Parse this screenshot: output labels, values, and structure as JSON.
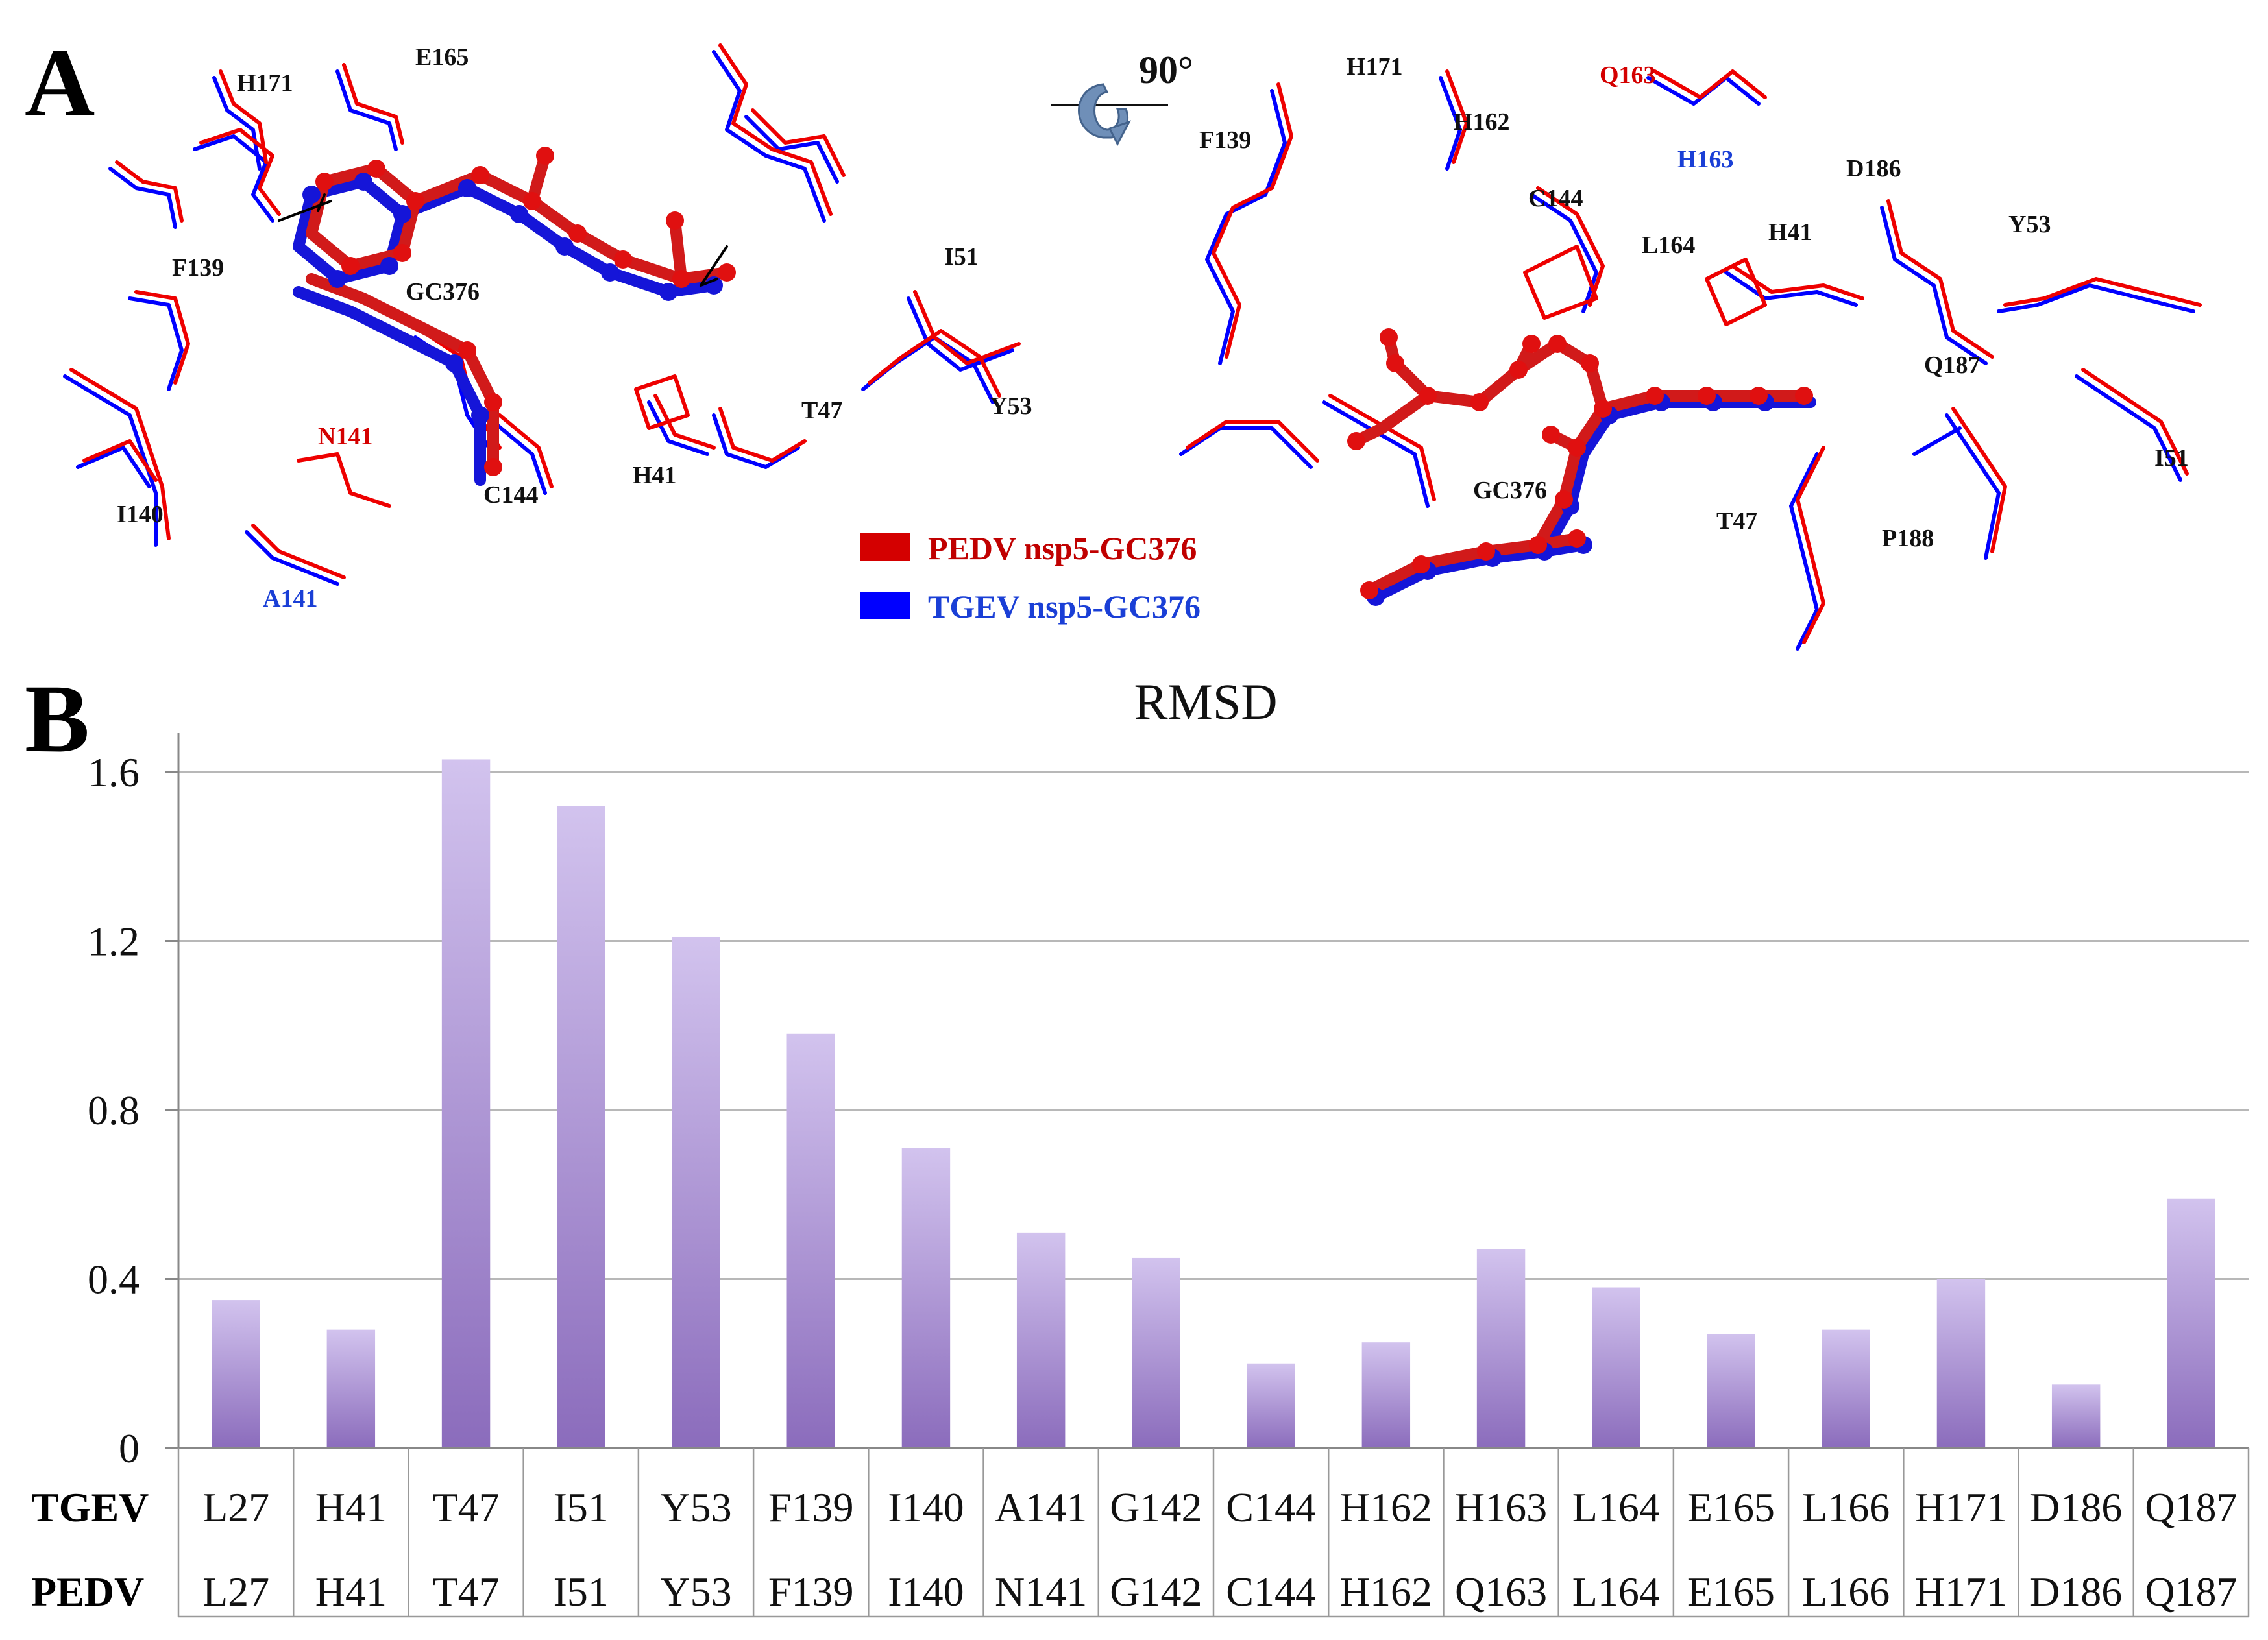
{
  "panel_a": {
    "label": "A",
    "rotation_label": "90°",
    "legend": [
      {
        "text": "PEDV nsp5-GC376",
        "color": "#d40000"
      },
      {
        "text": "TGEV nsp5-GC376",
        "color": "#0000ff"
      }
    ],
    "left_view_labels": [
      {
        "text": "H171",
        "color": "#111111"
      },
      {
        "text": "E165",
        "color": "#111111"
      },
      {
        "text": "F139",
        "color": "#111111"
      },
      {
        "text": "GC376",
        "color": "#111111"
      },
      {
        "text": "N141",
        "color": "#d40000"
      },
      {
        "text": "I140",
        "color": "#111111"
      },
      {
        "text": "A141",
        "color": "#1a3fd6"
      },
      {
        "text": "C144",
        "color": "#111111"
      },
      {
        "text": "H41",
        "color": "#111111"
      },
      {
        "text": "T47",
        "color": "#111111"
      },
      {
        "text": "I51",
        "color": "#111111"
      },
      {
        "text": "Y53",
        "color": "#111111"
      }
    ],
    "right_view_labels": [
      {
        "text": "H171",
        "color": "#111111"
      },
      {
        "text": "F139",
        "color": "#111111"
      },
      {
        "text": "H162",
        "color": "#111111"
      },
      {
        "text": "Q163",
        "color": "#d40000"
      },
      {
        "text": "H163",
        "color": "#1a3fd6"
      },
      {
        "text": "C144",
        "color": "#111111"
      },
      {
        "text": "L164",
        "color": "#111111"
      },
      {
        "text": "H41",
        "color": "#111111"
      },
      {
        "text": "D186",
        "color": "#111111"
      },
      {
        "text": "Y53",
        "color": "#111111"
      },
      {
        "text": "Q187",
        "color": "#111111"
      },
      {
        "text": "I51",
        "color": "#111111"
      },
      {
        "text": "GC376",
        "color": "#111111"
      },
      {
        "text": "T47",
        "color": "#111111"
      },
      {
        "text": "P188",
        "color": "#111111"
      }
    ]
  },
  "panel_b": {
    "label": "B",
    "row_labels": [
      "TGEV",
      "PEDV"
    ]
  },
  "chart_data": {
    "type": "bar",
    "title": "RMSD",
    "categories": [
      "L27",
      "H41",
      "T47",
      "I51",
      "Y53",
      "F139",
      "I140",
      "A141",
      "G142",
      "C144",
      "H162",
      "H163",
      "L164",
      "E165",
      "L166",
      "H171",
      "D186",
      "Q187"
    ],
    "pedv_categories": [
      "L27",
      "H41",
      "T47",
      "I51",
      "Y53",
      "F139",
      "I140",
      "N141",
      "G142",
      "C144",
      "H162",
      "Q163",
      "L164",
      "E165",
      "L166",
      "H171",
      "D186",
      "Q187"
    ],
    "values": [
      0.35,
      0.28,
      1.63,
      1.52,
      1.21,
      0.98,
      0.71,
      0.51,
      0.45,
      0.2,
      0.25,
      0.47,
      0.38,
      0.27,
      0.28,
      0.4,
      0.15,
      0.59
    ],
    "yticks": [
      "0",
      "0.4",
      "0.8",
      "1.2",
      "1.6"
    ],
    "ylim": [
      0,
      1.7
    ],
    "grid": true,
    "bar_color_top": "#d2c3ee",
    "bar_color_bottom": "#8b6cbc"
  }
}
